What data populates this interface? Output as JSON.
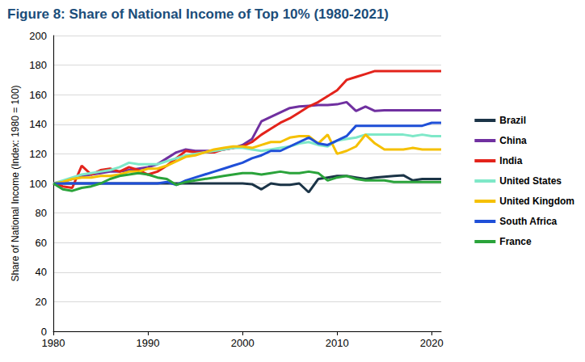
{
  "chart_data": {
    "type": "line",
    "title": "Figure 8: Share of National Income of Top 10% (1980-2021)",
    "y_label": "Share of National Income (Index: 1980 = 100)",
    "x": [
      1980,
      1981,
      1982,
      1983,
      1984,
      1985,
      1986,
      1987,
      1988,
      1989,
      1990,
      1991,
      1992,
      1993,
      1994,
      1995,
      1996,
      1997,
      1998,
      1999,
      2000,
      2001,
      2002,
      2003,
      2004,
      2005,
      2006,
      2007,
      2008,
      2009,
      2010,
      2011,
      2012,
      2013,
      2014,
      2015,
      2016,
      2017,
      2018,
      2019,
      2020,
      2021
    ],
    "xlim": [
      1980,
      2021
    ],
    "xticks": [
      1980,
      1990,
      2000,
      2010,
      2020
    ],
    "ylim": [
      0,
      200
    ],
    "yticks": [
      0,
      20,
      40,
      60,
      80,
      100,
      120,
      140,
      160,
      180,
      200
    ],
    "grid": true,
    "legend": "right",
    "series": [
      {
        "name": "Brazil",
        "color": "#1b3447",
        "values": [
          100,
          100,
          100,
          100,
          100,
          100,
          100,
          100,
          100,
          100,
          100,
          100,
          100,
          100,
          100,
          100,
          100,
          100,
          100,
          100,
          100,
          99.5,
          96,
          100,
          99,
          99,
          100,
          94,
          103,
          104,
          105,
          105,
          104,
          103,
          104,
          104.5,
          105,
          105.5,
          102,
          103,
          103,
          103
        ]
      },
      {
        "name": "China",
        "color": "#7030a0",
        "values": [
          100,
          101,
          103,
          105,
          106,
          107,
          108,
          108,
          109,
          110,
          111,
          113,
          117,
          121,
          123,
          122,
          122,
          122,
          123,
          124,
          126,
          130,
          142,
          145,
          148,
          151,
          152,
          152.5,
          153,
          153,
          153.5,
          155,
          149,
          152,
          149,
          149.5,
          149.5,
          149.5,
          149.5,
          149.5,
          149.5,
          149.5
        ]
      },
      {
        "name": "India",
        "color": "#e3231b",
        "values": [
          100,
          98,
          97,
          112,
          106,
          109,
          110,
          108,
          111,
          109,
          106,
          108,
          112,
          117,
          122,
          121,
          121,
          121,
          123,
          124,
          125,
          128,
          133,
          137,
          141,
          144,
          148,
          152,
          155,
          159,
          163,
          170,
          172,
          174,
          176,
          176,
          176,
          176,
          176,
          176,
          176,
          176
        ]
      },
      {
        "name": "United States",
        "color": "#7ee8c8",
        "values": [
          100,
          102,
          104,
          106,
          107,
          108,
          109,
          111,
          114,
          113,
          113,
          113,
          115,
          117,
          119,
          120,
          121,
          122,
          123,
          124,
          124,
          123,
          122,
          123,
          124,
          125,
          127,
          128,
          126,
          125,
          129,
          130,
          131,
          133,
          133,
          133,
          133,
          133,
          132,
          133,
          132,
          132
        ]
      },
      {
        "name": "United Kingdom",
        "color": "#f5c000",
        "values": [
          100,
          101,
          103,
          104,
          104,
          105,
          105,
          106,
          108,
          108,
          110,
          110,
          112,
          115,
          118,
          119,
          121,
          123,
          124,
          125,
          125,
          124,
          126,
          128,
          128,
          131,
          132,
          132,
          127,
          133,
          120,
          122,
          125,
          133,
          127,
          123,
          123,
          123,
          124,
          123,
          123,
          123
        ]
      },
      {
        "name": "South Africa",
        "color": "#1f4fd8",
        "values": [
          100,
          100,
          100,
          100,
          100,
          100,
          100,
          100,
          100,
          100,
          100,
          100,
          101,
          99,
          102,
          104,
          106,
          108,
          110,
          112,
          114,
          117,
          119,
          122,
          122,
          125,
          128,
          131,
          127,
          126,
          129,
          132,
          139,
          139,
          139,
          139,
          139,
          139,
          139,
          139,
          141,
          141
        ]
      },
      {
        "name": "France",
        "color": "#2aa33a",
        "values": [
          100,
          96,
          95,
          97,
          98,
          100,
          103,
          105,
          106,
          107,
          106,
          104,
          103,
          99,
          101,
          102,
          103,
          104,
          105,
          106,
          107,
          107,
          106,
          107,
          108,
          107,
          107,
          108,
          107,
          102,
          104,
          105,
          103,
          102,
          102,
          102,
          101,
          101,
          101,
          101,
          101,
          101
        ]
      }
    ]
  }
}
